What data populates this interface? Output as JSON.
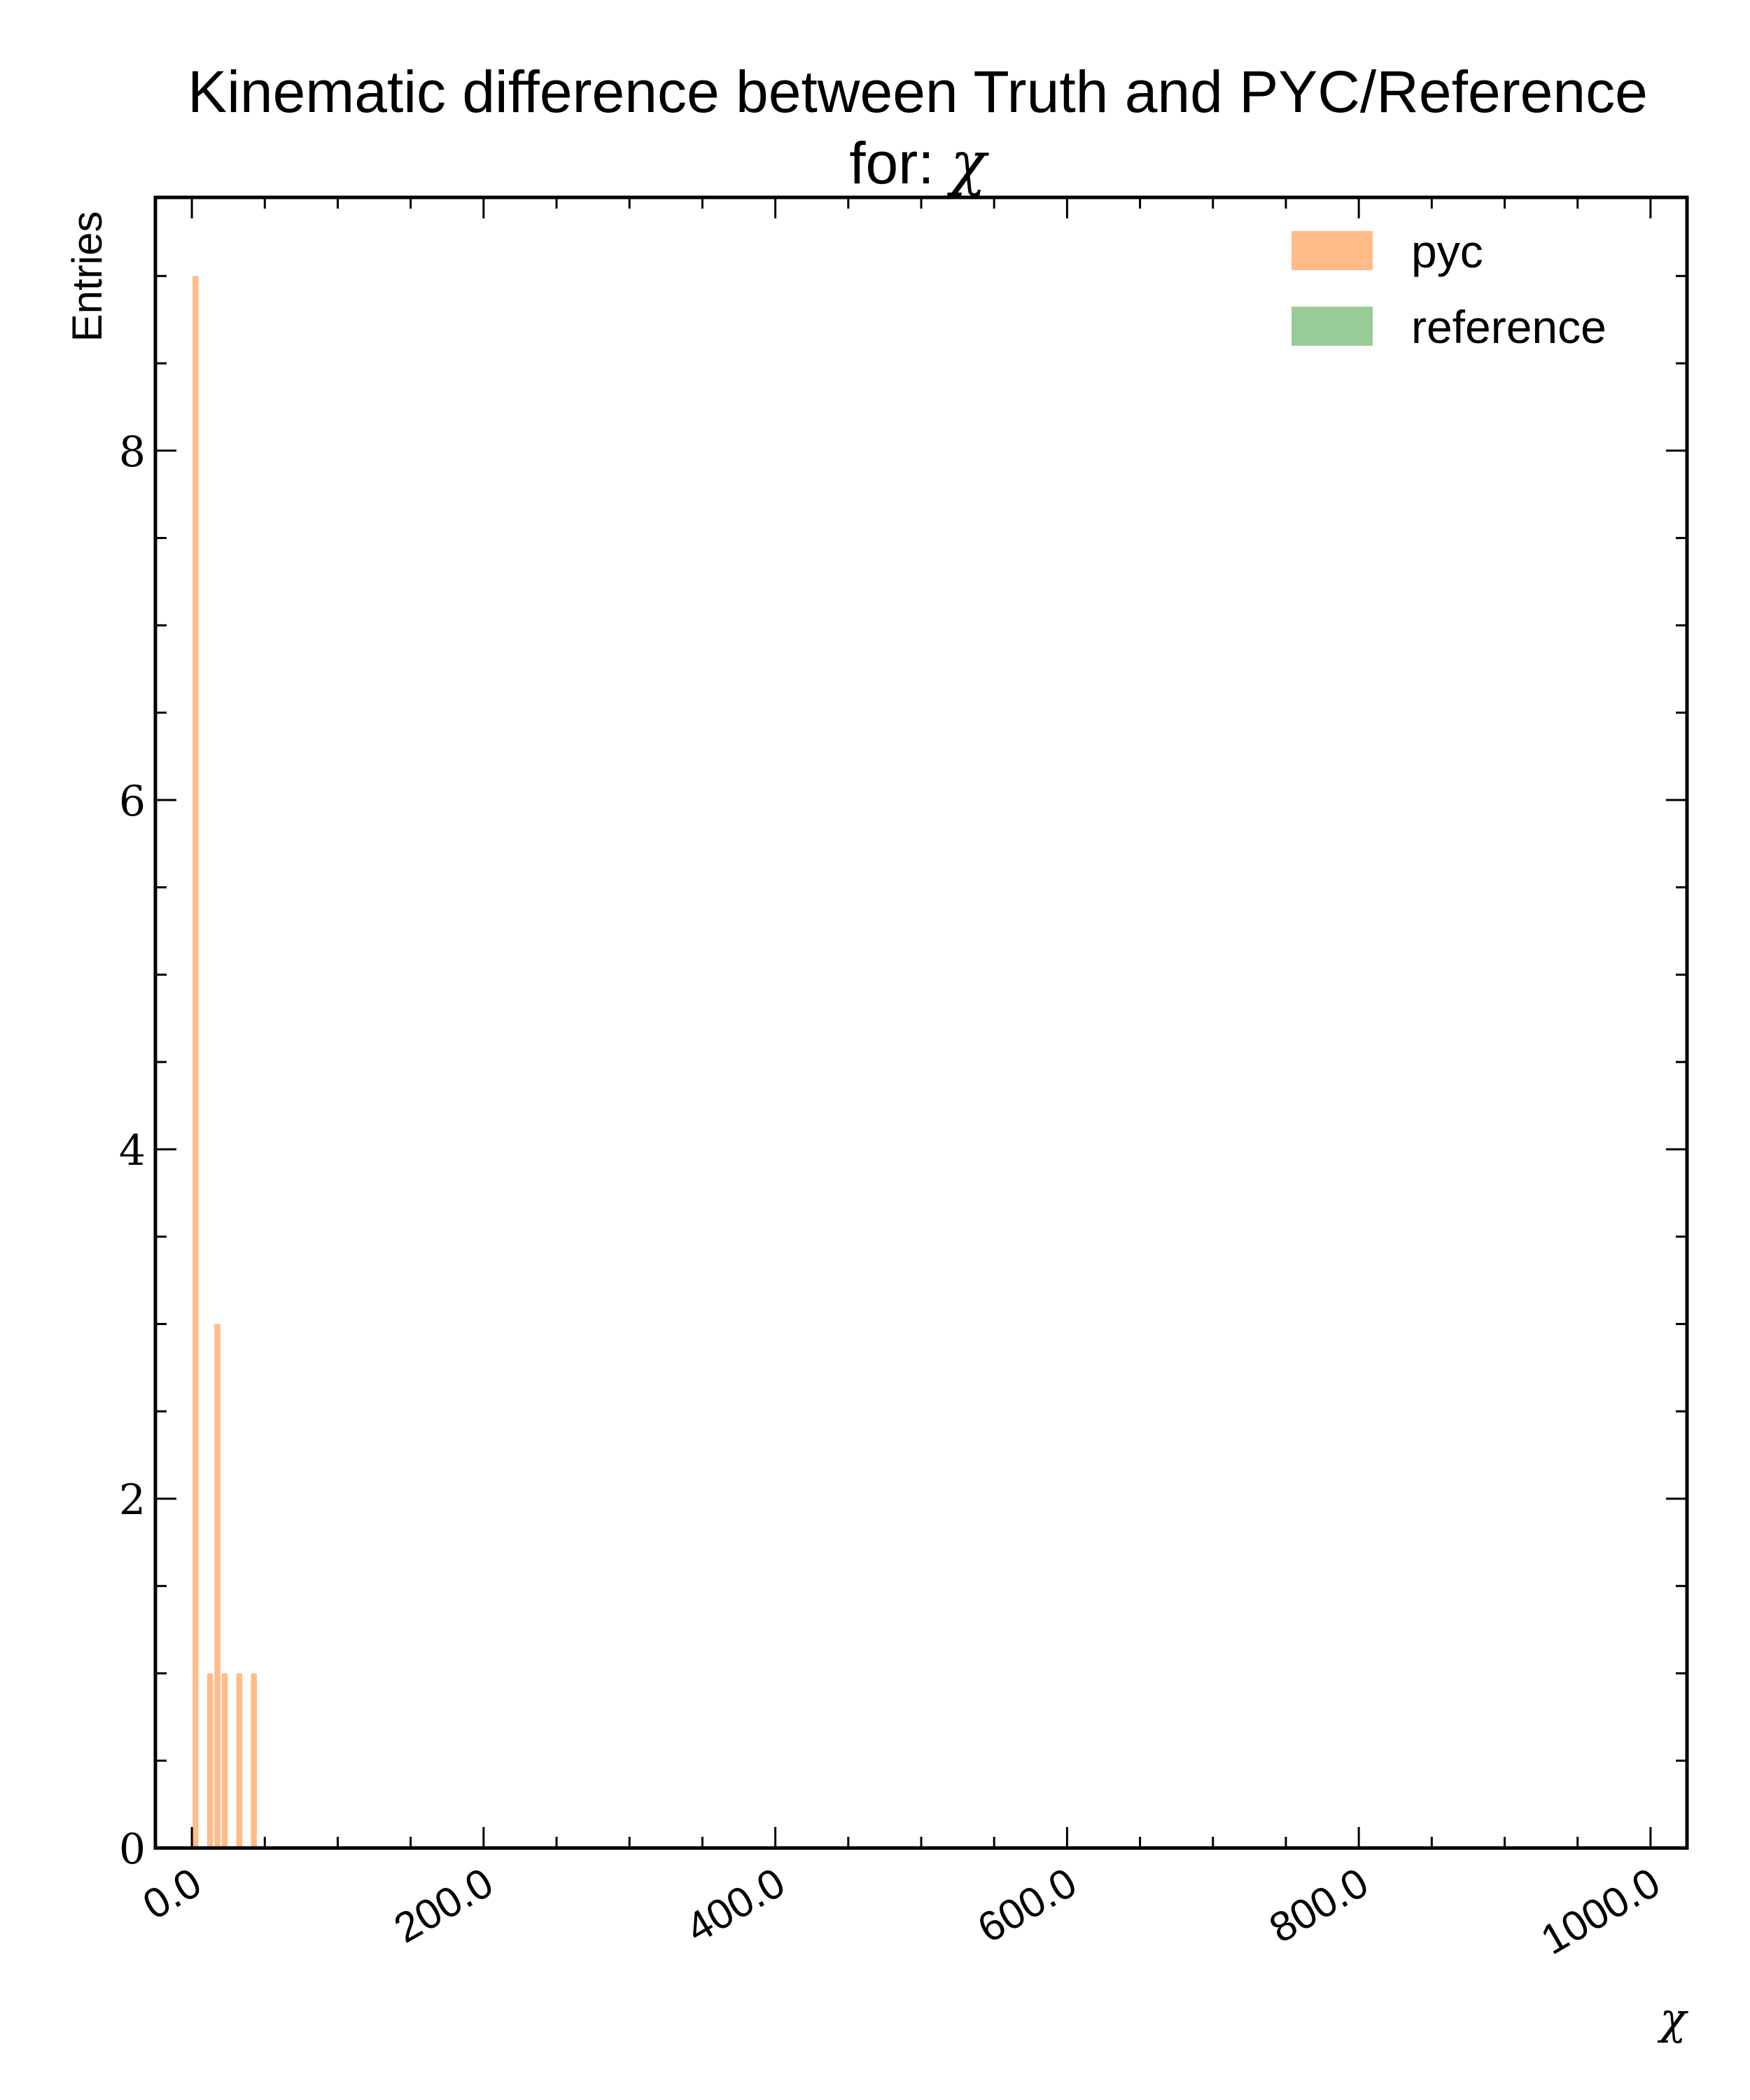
{
  "chart_data": {
    "type": "bar",
    "title_line1": "Kinematic difference between Truth and PYC/Reference",
    "title_line2_prefix": "for: ",
    "title_symbol": "χ",
    "xlabel": "χ",
    "ylabel": "Entries",
    "xlim": [
      -25,
      1025
    ],
    "ylim": [
      0,
      9.45
    ],
    "x_ticks": [
      0,
      200,
      400,
      600,
      800,
      1000
    ],
    "x_tick_labels": [
      "0.0",
      "200.0",
      "400.0",
      "600.0",
      "800.0",
      "1000.0"
    ],
    "y_ticks": [
      0,
      2,
      4,
      6,
      8
    ],
    "y_tick_labels": [
      "0",
      "2",
      "4",
      "6",
      "8"
    ],
    "y_minor_step": 0.5,
    "x_minor_step": 50,
    "grid": false,
    "legend_position": "top-right",
    "series": [
      {
        "name": "pyc",
        "color": "#ffbb88",
        "bins": [
          {
            "x0": 0,
            "x1": 5,
            "count": 9
          },
          {
            "x0": 10,
            "x1": 15,
            "count": 1
          },
          {
            "x0": 15,
            "x1": 20,
            "count": 3
          },
          {
            "x0": 20,
            "x1": 25,
            "count": 1
          },
          {
            "x0": 30,
            "x1": 35,
            "count": 1
          },
          {
            "x0": 40,
            "x1": 45,
            "count": 1
          }
        ]
      },
      {
        "name": "reference",
        "color": "#98cc96",
        "bins": []
      }
    ]
  }
}
